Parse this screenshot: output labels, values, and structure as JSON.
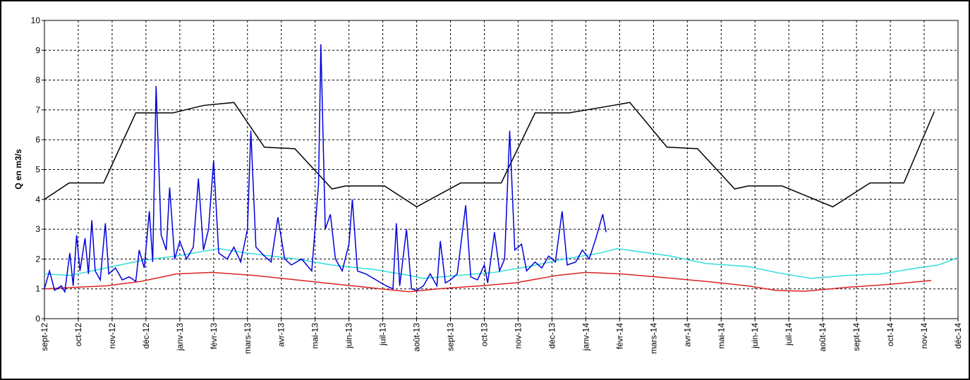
{
  "chart_data": {
    "type": "line",
    "y_label": "Q en m3/s",
    "xlim": [
      0,
      27
    ],
    "xticks": [
      {
        "value": 0,
        "label": "sept-12"
      },
      {
        "value": 1,
        "label": "oct-12"
      },
      {
        "value": 2,
        "label": "nov-12"
      },
      {
        "value": 3,
        "label": "déc-12"
      },
      {
        "value": 4,
        "label": "janv-13"
      },
      {
        "value": 5,
        "label": "févr-13"
      },
      {
        "value": 6,
        "label": "mars-13"
      },
      {
        "value": 7,
        "label": "avr-13"
      },
      {
        "value": 8,
        "label": "mai-13"
      },
      {
        "value": 9,
        "label": "juin-13"
      },
      {
        "value": 10,
        "label": "juil-13"
      },
      {
        "value": 11,
        "label": "août-13"
      },
      {
        "value": 12,
        "label": "sept-13"
      },
      {
        "value": 13,
        "label": "oct-13"
      },
      {
        "value": 14,
        "label": "nov-13"
      },
      {
        "value": 15,
        "label": "déc-13"
      },
      {
        "value": 16,
        "label": "janv-14"
      },
      {
        "value": 17,
        "label": "févr-14"
      },
      {
        "value": 18,
        "label": "mars-14"
      },
      {
        "value": 19,
        "label": "avr-14"
      },
      {
        "value": 20,
        "label": "mai-14"
      },
      {
        "value": 21,
        "label": "juin-14"
      },
      {
        "value": 22,
        "label": "juil-14"
      },
      {
        "value": 23,
        "label": "août-14"
      },
      {
        "value": 24,
        "label": "sept-14"
      },
      {
        "value": 25,
        "label": "oct-14"
      },
      {
        "value": 26,
        "label": "nov-14"
      },
      {
        "value": 27,
        "label": "déc-14"
      }
    ],
    "ylim": [
      0,
      10
    ],
    "yticks": [
      0,
      1,
      2,
      3,
      4,
      5,
      6,
      7,
      8,
      9,
      10
    ],
    "grid": true,
    "series": [
      {
        "color": "#000000",
        "x": [
          0,
          0.73,
          1.75,
          2.7,
          3.8,
          4.7,
          5.6,
          6.5,
          7.4,
          8.5,
          8.9,
          10.05,
          11,
          12.3,
          13.5,
          14.5,
          15.5,
          16.8,
          17.3,
          18.4,
          19.3,
          20.4,
          20.8,
          21.8,
          23.3,
          24.4,
          25.4,
          26.3
        ],
        "values": [
          4.0,
          4.55,
          4.55,
          6.9,
          6.9,
          7.15,
          7.25,
          5.75,
          5.7,
          4.35,
          4.45,
          4.45,
          3.75,
          4.55,
          4.55,
          6.9,
          6.9,
          7.15,
          7.25,
          5.75,
          5.7,
          4.35,
          4.45,
          4.45,
          3.75,
          4.55,
          4.55,
          6.95
        ]
      },
      {
        "color": "#33dddd",
        "x": [
          0,
          0.77,
          1.81,
          2.86,
          3.9,
          5.15,
          5.98,
          7.44,
          8.49,
          9.74,
          10.78,
          11.2,
          12.24,
          13.28,
          14.32,
          15.37,
          16.41,
          16.93,
          18.5,
          19.54,
          20.79,
          21.62,
          22.66,
          23.71,
          24.75,
          25.79,
          26.42,
          27
        ],
        "values": [
          1.5,
          1.45,
          1.7,
          1.95,
          2.1,
          2.35,
          2.2,
          2.0,
          1.8,
          1.65,
          1.45,
          1.35,
          1.45,
          1.55,
          1.75,
          2.0,
          2.2,
          2.35,
          2.1,
          1.85,
          1.75,
          1.55,
          1.35,
          1.45,
          1.5,
          1.7,
          1.8,
          2.05
        ]
      },
      {
        "color": "#dd2222",
        "x": [
          0,
          1.81,
          2.86,
          3.9,
          4.94,
          6.19,
          7.44,
          8.69,
          9.95,
          10.78,
          11.61,
          12.87,
          13.91,
          15.16,
          15.99,
          17.04,
          18.08,
          19.54,
          20.79,
          21.62,
          22.46,
          23.71,
          24.96,
          26.21
        ],
        "values": [
          1.0,
          1.1,
          1.25,
          1.5,
          1.55,
          1.45,
          1.3,
          1.15,
          1.0,
          0.9,
          1.0,
          1.1,
          1.2,
          1.45,
          1.55,
          1.5,
          1.4,
          1.25,
          1.1,
          0.95,
          0.92,
          1.05,
          1.15,
          1.28
        ]
      },
      {
        "color": "#0000dd",
        "x": [
          0,
          0.15,
          0.3,
          0.5,
          0.6,
          0.75,
          0.85,
          0.95,
          1.05,
          1.2,
          1.3,
          1.4,
          1.5,
          1.65,
          1.8,
          1.9,
          2.1,
          2.3,
          2.5,
          2.7,
          2.8,
          2.95,
          3.1,
          3.2,
          3.3,
          3.45,
          3.6,
          3.7,
          3.85,
          4.0,
          4.2,
          4.4,
          4.55,
          4.7,
          4.85,
          5.0,
          5.15,
          5.4,
          5.6,
          5.8,
          6.0,
          6.1,
          6.25,
          6.5,
          6.7,
          6.9,
          7.1,
          7.3,
          7.6,
          7.9,
          8.1,
          8.17,
          8.3,
          8.45,
          8.6,
          8.8,
          9.0,
          9.1,
          9.25,
          9.5,
          9.8,
          10.1,
          10.3,
          10.4,
          10.5,
          10.7,
          10.85,
          11.0,
          11.2,
          11.4,
          11.6,
          11.7,
          11.85,
          12.0,
          12.2,
          12.45,
          12.6,
          12.8,
          13.0,
          13.1,
          13.3,
          13.45,
          13.6,
          13.75,
          13.9,
          14.1,
          14.25,
          14.5,
          14.7,
          14.9,
          15.1,
          15.3,
          15.45,
          15.7,
          15.9,
          16.1,
          16.3,
          16.5,
          16.6
        ],
        "values": [
          1.0,
          1.6,
          0.95,
          1.1,
          0.9,
          2.2,
          1.1,
          2.8,
          1.6,
          2.7,
          1.5,
          3.3,
          1.6,
          1.3,
          3.2,
          1.5,
          1.7,
          1.3,
          1.4,
          1.25,
          2.3,
          1.7,
          3.6,
          1.9,
          7.8,
          2.8,
          2.3,
          4.4,
          2.0,
          2.6,
          2.0,
          2.4,
          4.7,
          2.3,
          3.0,
          5.3,
          2.2,
          2.0,
          2.4,
          1.9,
          3.0,
          6.3,
          2.4,
          2.1,
          1.9,
          3.4,
          2.0,
          1.8,
          2.0,
          1.6,
          4.5,
          9.2,
          3.0,
          3.5,
          2.0,
          1.6,
          2.5,
          4.0,
          1.6,
          1.5,
          1.3,
          1.1,
          1.0,
          3.2,
          1.1,
          3.0,
          1.0,
          0.95,
          1.1,
          1.5,
          1.1,
          2.6,
          1.2,
          1.3,
          1.5,
          3.8,
          1.4,
          1.3,
          1.8,
          1.2,
          2.9,
          1.6,
          2.0,
          6.3,
          2.3,
          2.5,
          1.6,
          1.9,
          1.7,
          2.1,
          1.9,
          3.6,
          1.8,
          1.9,
          2.3,
          2.0,
          2.7,
          3.5,
          2.9
        ]
      }
    ]
  }
}
